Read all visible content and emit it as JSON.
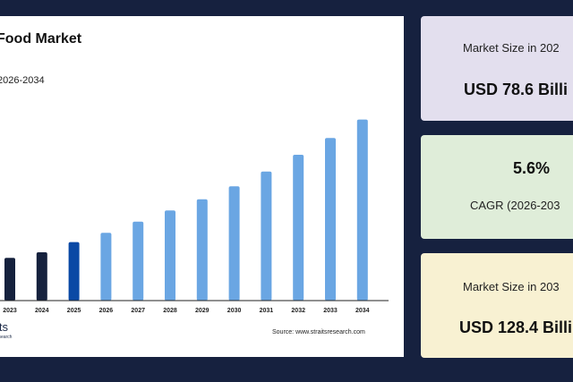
{
  "chart": {
    "title": "Food Market",
    "subtitle": "2026-2034",
    "logo_text": "its",
    "logo_subtext": "research",
    "source": "Source: www.straitsresearch.com"
  },
  "chart_data": {
    "type": "bar",
    "title": "Food Market",
    "subtitle": "2026-2034",
    "xlabel": "",
    "ylabel": "",
    "categories": [
      "2023",
      "2024",
      "2025",
      "2026",
      "2027",
      "2028",
      "2029",
      "2030",
      "2031",
      "2032",
      "2033",
      "2034"
    ],
    "values": [
      46,
      52,
      63,
      73,
      85,
      97,
      109,
      123,
      139,
      157,
      175,
      195
    ],
    "ylim": [
      0,
      210
    ],
    "grid": false,
    "legend": "none",
    "colors": {
      "historical": "#15213d",
      "base_year": "#0a49a5",
      "forecast": "#6aa6e3"
    },
    "color_by_category": [
      "historical",
      "historical",
      "base_year",
      "forecast",
      "forecast",
      "forecast",
      "forecast",
      "forecast",
      "forecast",
      "forecast",
      "forecast",
      "forecast"
    ]
  },
  "stats": [
    {
      "label": "Market Size in 202",
      "value": "USD 78.6 Billi"
    },
    {
      "value": "5.6%",
      "label": "CAGR (2026-203"
    },
    {
      "label": "Market Size in 203",
      "value": "USD 128.4 Billi"
    }
  ]
}
